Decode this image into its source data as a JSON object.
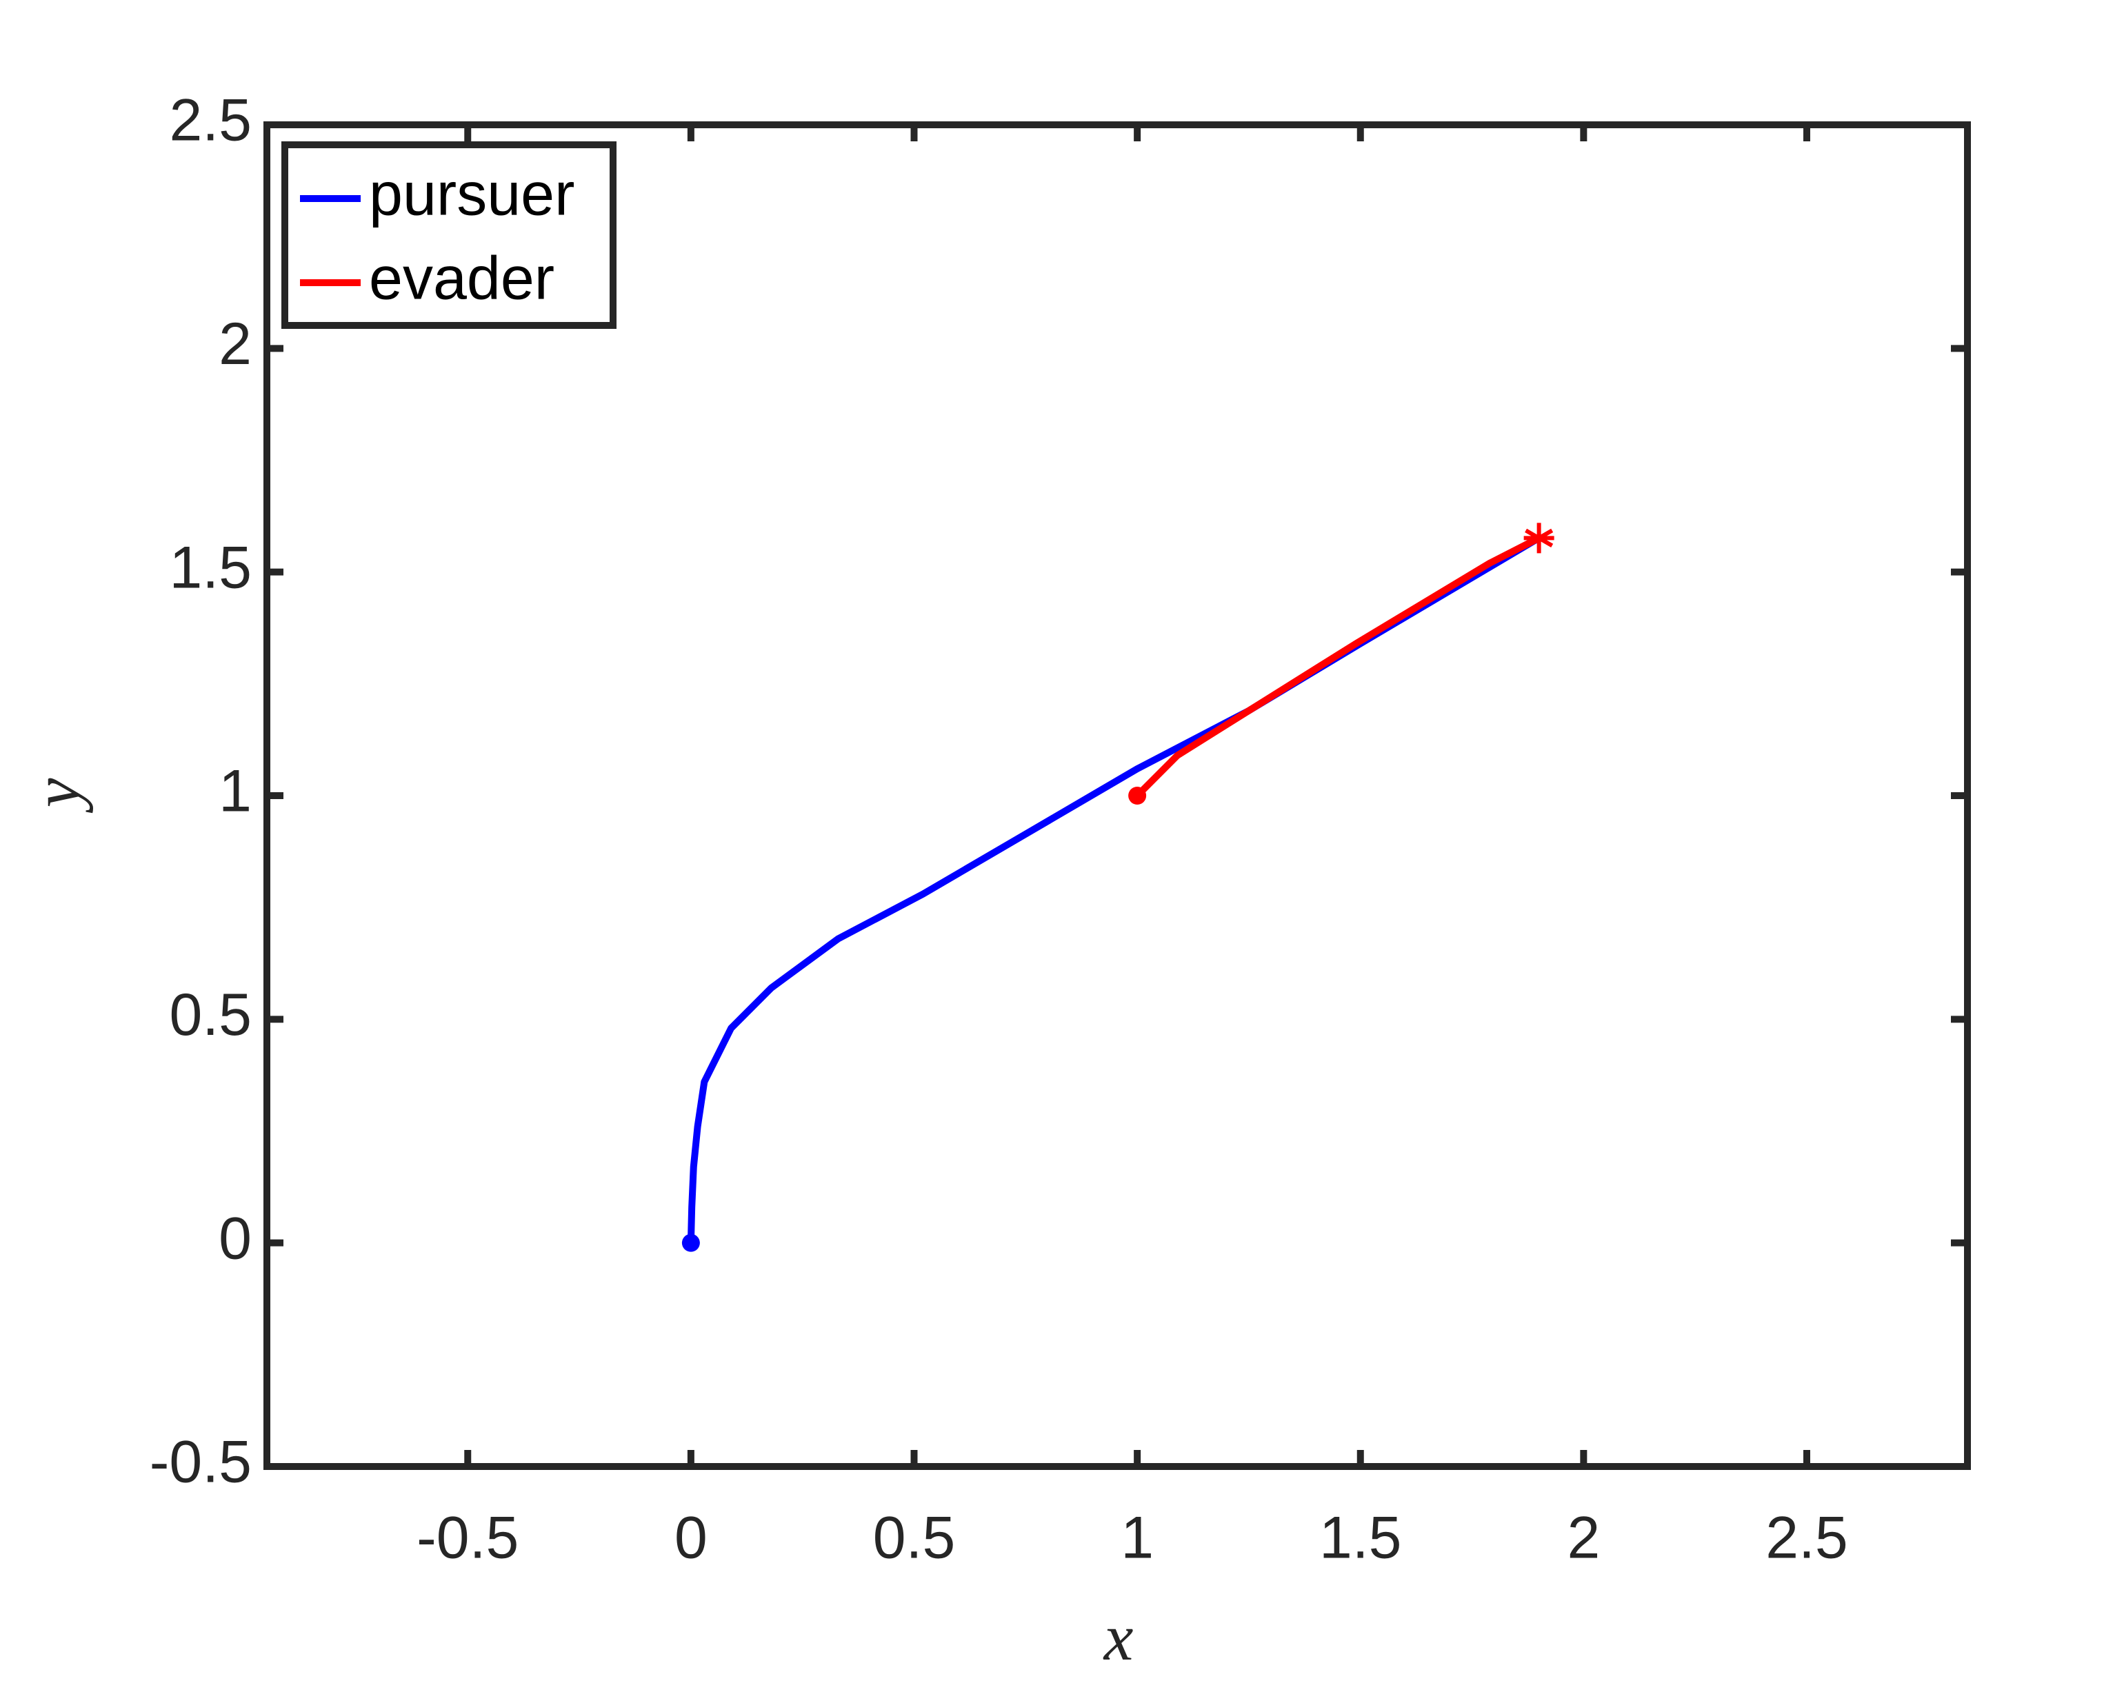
{
  "chart_data": {
    "type": "line",
    "xlabel": "x",
    "ylabel": "y",
    "xlim": [
      -0.95,
      2.86
    ],
    "ylim": [
      -0.5,
      2.5
    ],
    "xticks": [
      -0.5,
      0,
      0.5,
      1,
      1.5,
      2,
      2.5
    ],
    "yticks": [
      -0.5,
      0,
      0.5,
      1,
      1.5,
      2,
      2.5
    ],
    "legend": "upper left",
    "series": [
      {
        "name": "pursuer",
        "color": "#0000ff",
        "x": [
          0,
          0.002,
          0.006,
          0.015,
          0.03,
          0.09,
          0.18,
          0.33,
          0.52,
          0.76,
          1.0,
          1.25,
          1.5,
          1.9
        ],
        "values": [
          0,
          0.08,
          0.17,
          0.26,
          0.36,
          0.48,
          0.57,
          0.68,
          0.78,
          0.92,
          1.06,
          1.19,
          1.34,
          1.576
        ]
      },
      {
        "name": "evader",
        "color": "#ff0000",
        "x": [
          1,
          1.09,
          1.25,
          1.49,
          1.79,
          1.9
        ],
        "values": [
          1,
          1.09,
          1.19,
          1.34,
          1.52,
          1.576
        ]
      }
    ]
  }
}
